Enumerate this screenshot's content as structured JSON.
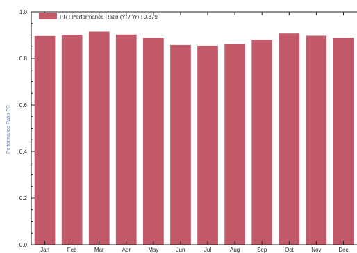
{
  "chart_data": {
    "type": "bar",
    "categories": [
      "Jan",
      "Feb",
      "Mar",
      "Apr",
      "May",
      "Jun",
      "Jul",
      "Aug",
      "Sep",
      "Oct",
      "Nov",
      "Dec"
    ],
    "series": [
      {
        "name": "PR : Performance Ratio (Yf / Yr) :",
        "values": [
          0.896,
          0.901,
          0.915,
          0.902,
          0.889,
          0.857,
          0.854,
          0.861,
          0.88,
          0.907,
          0.897,
          0.889
        ]
      }
    ],
    "legend_value": "0.879",
    "ylabel": "Performance Ratio PR",
    "ylim": [
      0,
      1.0
    ],
    "yticks": [
      "0.0",
      "0.2",
      "0.4",
      "0.6",
      "0.8",
      "1.0"
    ],
    "grid": false,
    "legend_position": "top-left",
    "colors": {
      "bar": "#c25a6a",
      "axis": "#222222",
      "ylabel": "#5a86b8"
    }
  }
}
